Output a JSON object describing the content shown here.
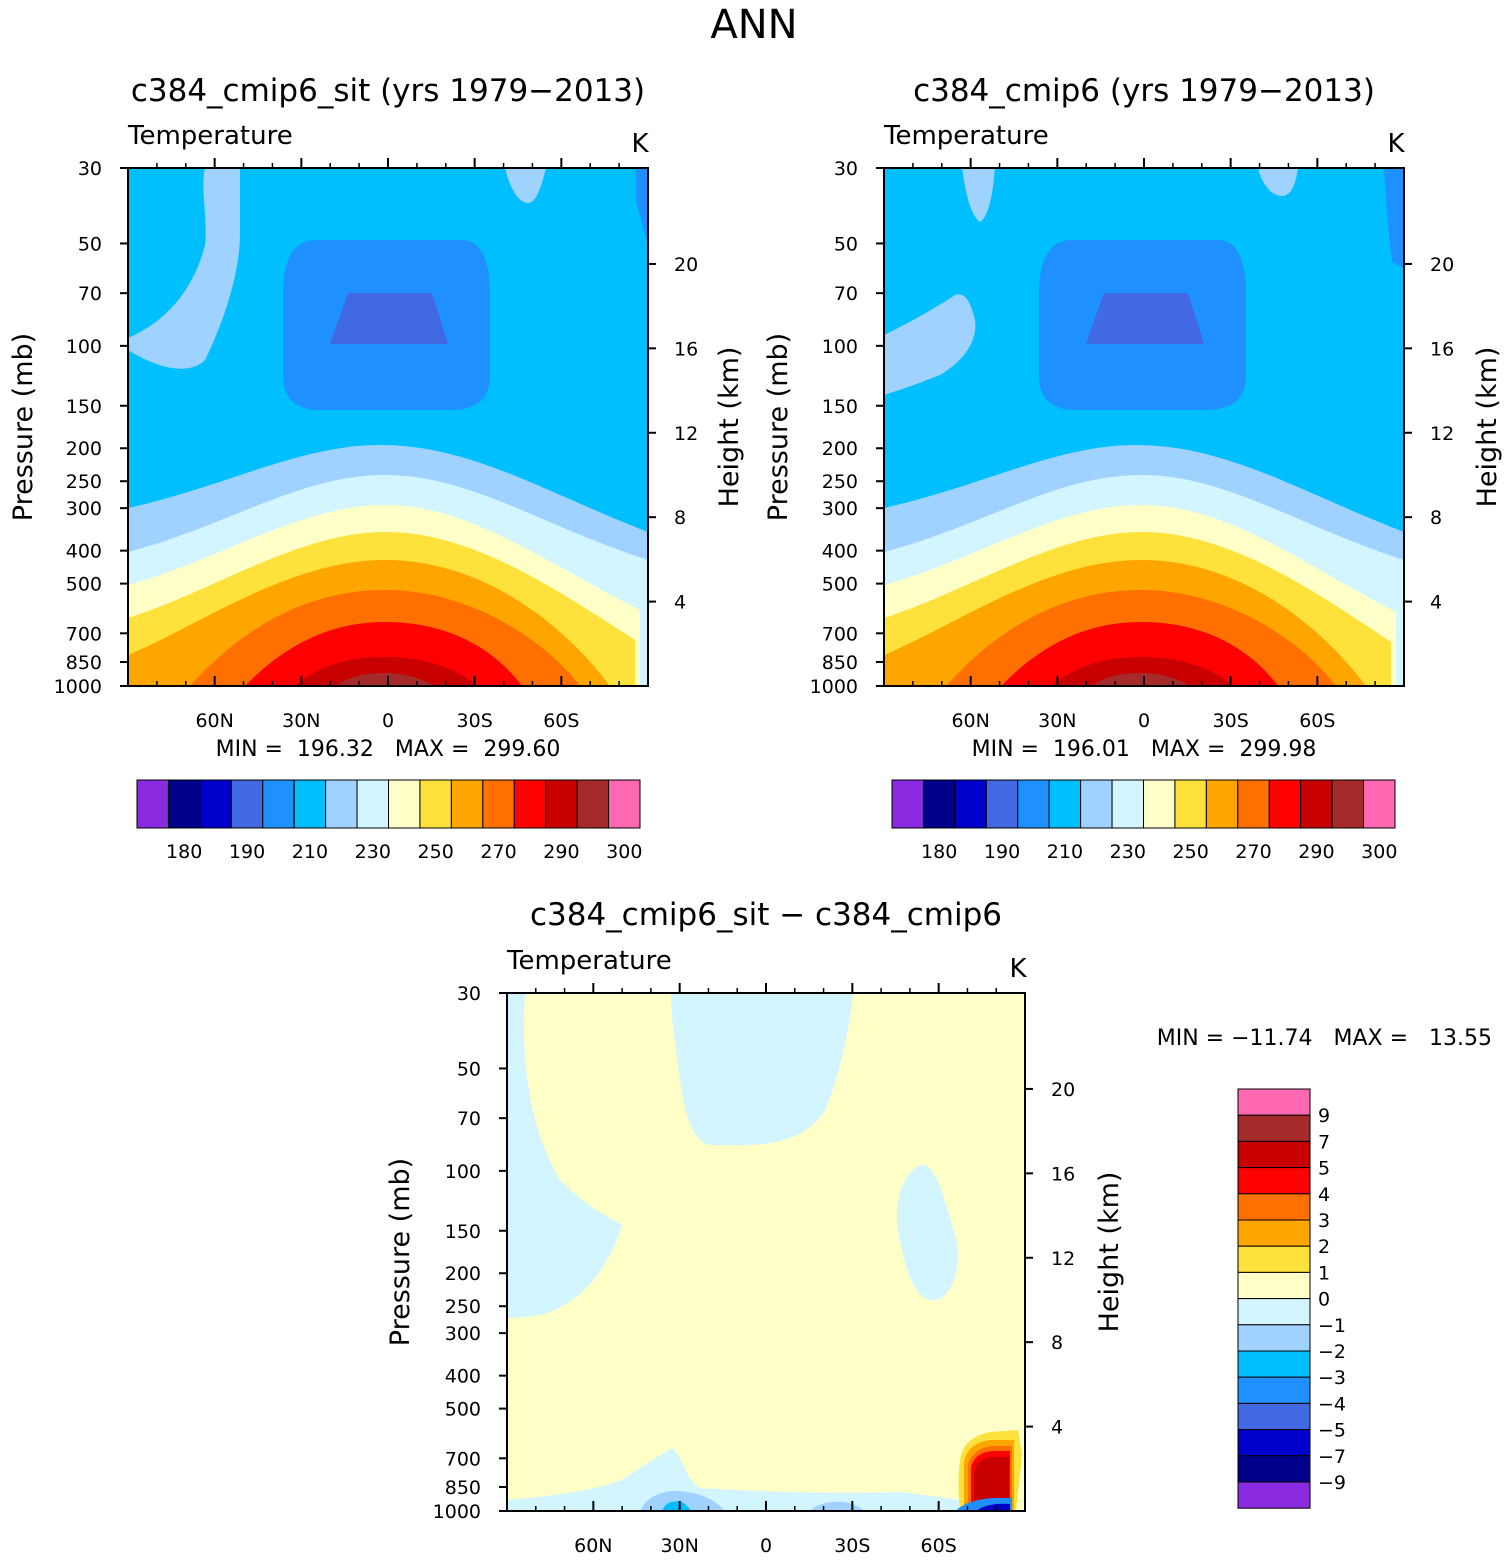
{
  "figure_title": "ANN",
  "chart_data": [
    {
      "type": "heatmap",
      "title": "c384_cmip6_sit (yrs 1979−2013)",
      "variable": "Temperature",
      "units": "K",
      "ylabel": "Pressure (mb)",
      "ylabel_right": "Height (km)",
      "pressure_ticks": [
        "30",
        "50",
        "70",
        "100",
        "150",
        "200",
        "250",
        "300",
        "400",
        "500",
        "700",
        "850",
        "1000"
      ],
      "height_ticks": [
        "20",
        "16",
        "12",
        "8",
        "4"
      ],
      "lat_ticks": [
        "60N",
        "30N",
        "0",
        "30S",
        "60S"
      ],
      "stats": "MIN =  196.32   MAX =  299.60",
      "colorbar_labels": [
        "180",
        "190",
        "210",
        "230",
        "250",
        "270",
        "290",
        "300"
      ],
      "contour_levels": [
        210,
        220,
        230,
        240,
        250,
        260,
        270,
        280,
        290,
        300
      ]
    },
    {
      "type": "heatmap",
      "title": "c384_cmip6 (yrs 1979−2013)",
      "variable": "Temperature",
      "units": "K",
      "ylabel": "Pressure (mb)",
      "ylabel_right": "Height (km)",
      "pressure_ticks": [
        "30",
        "50",
        "70",
        "100",
        "150",
        "200",
        "250",
        "300",
        "400",
        "500",
        "700",
        "850",
        "1000"
      ],
      "height_ticks": [
        "20",
        "16",
        "12",
        "8",
        "4"
      ],
      "lat_ticks": [
        "60N",
        "30N",
        "0",
        "30S",
        "60S"
      ],
      "stats": "MIN =  196.01   MAX =  299.98",
      "colorbar_labels": [
        "180",
        "190",
        "210",
        "230",
        "250",
        "270",
        "290",
        "300"
      ],
      "contour_levels": [
        210,
        220,
        230,
        240,
        250,
        260,
        270,
        280,
        290,
        300
      ]
    },
    {
      "type": "heatmap",
      "title": "c384_cmip6_sit − c384_cmip6",
      "variable": "Temperature",
      "units": "K",
      "ylabel": "Pressure (mb)",
      "ylabel_right": "Height (km)",
      "pressure_ticks": [
        "30",
        "50",
        "70",
        "100",
        "150",
        "200",
        "250",
        "300",
        "400",
        "500",
        "700",
        "850",
        "1000"
      ],
      "height_ticks": [
        "20",
        "16",
        "12",
        "8",
        "4"
      ],
      "lat_ticks": [
        "60N",
        "30N",
        "0",
        "30S",
        "60S"
      ],
      "stats": "MIN = −11.74   MAX =   13.55",
      "colorbar_labels": [
        "9",
        "7",
        "5",
        "4",
        "3",
        "2",
        "1",
        "0",
        "−1",
        "−2",
        "−3",
        "−4",
        "−5",
        "−7",
        "−9"
      ]
    }
  ],
  "colors": {
    "temp_palette": [
      "#8a2be2",
      "#00008b",
      "#0000cd",
      "#4169e1",
      "#1e90ff",
      "#00bfff",
      "#a0d2ff",
      "#d2f5ff",
      "#ffffc8",
      "#ffe13c",
      "#ffa500",
      "#ff7000",
      "#ff0000",
      "#c80000",
      "#a52a2a",
      "#ff69b4"
    ],
    "diff_palette": [
      "#ff69b4",
      "#a52a2a",
      "#c80000",
      "#ff0000",
      "#ff7000",
      "#ffa500",
      "#ffe13c",
      "#ffffc8",
      "#d2f5ff",
      "#a0d2ff",
      "#00bfff",
      "#1e90ff",
      "#4169e1",
      "#0000cd",
      "#00008b",
      "#8a2be2"
    ]
  }
}
